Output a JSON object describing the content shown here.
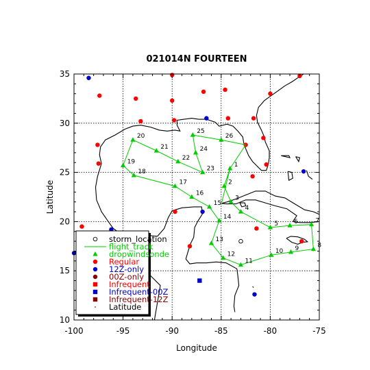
{
  "chart_data": {
    "type": "scatter",
    "title": "021014N FOURTEEN",
    "xlabel": "Longitude",
    "ylabel": "Latitude",
    "xlim": [
      -100,
      -75
    ],
    "ylim": [
      10,
      35
    ],
    "xticks": [
      -100,
      -95,
      -90,
      -85,
      -80,
      -75
    ],
    "yticks": [
      10,
      15,
      20,
      25,
      30,
      35
    ],
    "grid": true,
    "legend_position": "bottom-left",
    "colors": {
      "flight_track": "#00cc00",
      "regular": "#ff0000",
      "twelve_z": "#0000cc",
      "zero_z": "#880000",
      "coast": "#000000"
    },
    "legend": [
      {
        "label": "storm_location",
        "marker": "open-circle",
        "color": "#000000"
      },
      {
        "label": "flight_track",
        "marker": "line",
        "color": "#00cc00"
      },
      {
        "label": "dropwindsonde",
        "marker": "triangle",
        "color": "#00cc00"
      },
      {
        "label": "Regular",
        "marker": "circle",
        "color": "#ff0000"
      },
      {
        "label": "12Z-only",
        "marker": "circle",
        "color": "#0000cc"
      },
      {
        "label": "00Z-only",
        "marker": "circle",
        "color": "#880000"
      },
      {
        "label": "Infrequent",
        "marker": "square",
        "color": "#ff0000"
      },
      {
        "label": "Infrequent-00Z",
        "marker": "square",
        "color": "#0000cc"
      },
      {
        "label": "Infrequent-12Z",
        "marker": "square",
        "color": "#880000"
      },
      {
        "label": "Latitude",
        "marker": "dot",
        "color": "#000000"
      }
    ],
    "storm_location": {
      "x": -83.0,
      "y": 18.0
    },
    "flight_track": [
      {
        "x": -85.0,
        "y": 21.7,
        "label": ""
      },
      {
        "x": -84.1,
        "y": 25.4,
        "label": "1"
      },
      {
        "x": -84.7,
        "y": 23.6,
        "label": "2"
      },
      {
        "x": -84.0,
        "y": 22.0,
        "label": "3"
      },
      {
        "x": -83.0,
        "y": 21.0,
        "label": "4"
      },
      {
        "x": -80.0,
        "y": 19.4,
        "label": "5"
      },
      {
        "x": -78.0,
        "y": 19.6,
        "label": "6"
      },
      {
        "x": -75.8,
        "y": 19.7,
        "label": "7"
      },
      {
        "x": -75.6,
        "y": 17.2,
        "label": "8"
      },
      {
        "x": -77.9,
        "y": 16.9,
        "label": "9"
      },
      {
        "x": -79.9,
        "y": 16.6,
        "label": "10"
      },
      {
        "x": -83.0,
        "y": 15.6,
        "label": "11"
      },
      {
        "x": -84.8,
        "y": 16.3,
        "label": "12"
      },
      {
        "x": -86.0,
        "y": 17.8,
        "label": "13"
      },
      {
        "x": -85.2,
        "y": 20.1,
        "label": "14"
      },
      {
        "x": -86.2,
        "y": 21.5,
        "label": "15"
      },
      {
        "x": -88.0,
        "y": 22.5,
        "label": "16"
      },
      {
        "x": -89.7,
        "y": 23.6,
        "label": "17"
      },
      {
        "x": -93.9,
        "y": 24.7,
        "label": "18"
      },
      {
        "x": -95.0,
        "y": 25.7,
        "label": "19"
      },
      {
        "x": -94.0,
        "y": 28.3,
        "label": "20"
      },
      {
        "x": -91.6,
        "y": 27.2,
        "label": "21"
      },
      {
        "x": -89.4,
        "y": 26.1,
        "label": "22"
      },
      {
        "x": -86.9,
        "y": 25.0,
        "label": "23"
      },
      {
        "x": -87.6,
        "y": 27.0,
        "label": "24"
      },
      {
        "x": -87.9,
        "y": 28.8,
        "label": "25"
      },
      {
        "x": -85.0,
        "y": 28.3,
        "label": "26"
      },
      {
        "x": -82.5,
        "y": 27.8,
        "label": ""
      },
      {
        "x": -84.1,
        "y": 25.4,
        "label": ""
      }
    ],
    "regular_stations": [
      {
        "x": -97.4,
        "y": 32.8
      },
      {
        "x": -90.0,
        "y": 34.9
      },
      {
        "x": -93.7,
        "y": 32.5
      },
      {
        "x": -90.0,
        "y": 32.3
      },
      {
        "x": -86.8,
        "y": 33.2
      },
      {
        "x": -84.6,
        "y": 33.4
      },
      {
        "x": -80.0,
        "y": 33.0
      },
      {
        "x": -77.0,
        "y": 34.8
      },
      {
        "x": -93.2,
        "y": 30.2
      },
      {
        "x": -89.8,
        "y": 30.3
      },
      {
        "x": -84.3,
        "y": 30.5
      },
      {
        "x": -81.7,
        "y": 30.5
      },
      {
        "x": -80.7,
        "y": 28.5
      },
      {
        "x": -82.5,
        "y": 27.8
      },
      {
        "x": -80.4,
        "y": 25.8
      },
      {
        "x": -81.8,
        "y": 24.6
      },
      {
        "x": -97.6,
        "y": 27.8
      },
      {
        "x": -97.5,
        "y": 25.9
      },
      {
        "x": -99.2,
        "y": 19.5
      },
      {
        "x": -89.7,
        "y": 21.0
      },
      {
        "x": -88.2,
        "y": 17.5
      },
      {
        "x": -81.4,
        "y": 19.3
      },
      {
        "x": -76.8,
        "y": 18.0
      }
    ],
    "twelve_z_stations": [
      {
        "x": -98.5,
        "y": 34.6
      },
      {
        "x": -86.5,
        "y": 30.5
      },
      {
        "x": -76.6,
        "y": 25.1
      },
      {
        "x": -86.9,
        "y": 21.0
      },
      {
        "x": -96.2,
        "y": 19.2
      },
      {
        "x": -100.0,
        "y": 16.8
      },
      {
        "x": -81.6,
        "y": 12.6
      }
    ],
    "zero_z_stations": [],
    "infrequent_00z_stations": [
      {
        "x": -87.2,
        "y": 14.0
      }
    ]
  }
}
